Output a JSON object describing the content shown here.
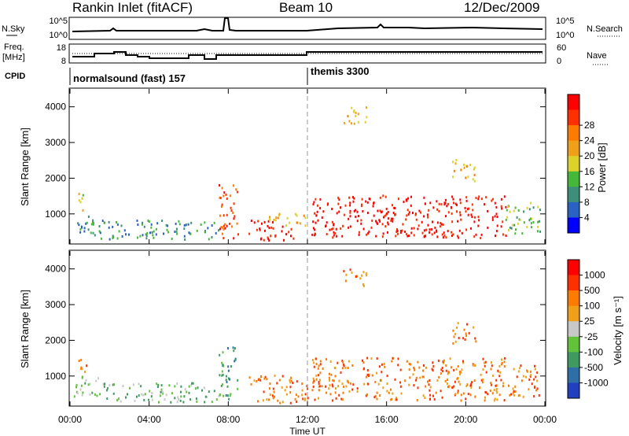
{
  "header": {
    "site": "Rankin Inlet (fitACF)",
    "beam": "Beam 10",
    "date": "12/Dec/2009"
  },
  "noise_panel": {
    "left_label": "N.Sky",
    "right_label": "N.Search",
    "left_ticks": [
      "10^5",
      "10^0"
    ],
    "right_ticks": [
      "10^5",
      "10^0"
    ]
  },
  "freq_panel": {
    "left_label_line1": "Freq.",
    "left_label_line2": "[MHz]",
    "right_label": "Nave",
    "left_ticks": [
      "18",
      "8"
    ],
    "right_ticks": [
      "60",
      "0"
    ]
  },
  "cpid": {
    "label": "CPID",
    "segments": [
      {
        "start_hour": 0,
        "end_hour": 12,
        "text": "normalsound (fast) 157"
      },
      {
        "start_hour": 12,
        "end_hour": 24,
        "text": "themis 3300"
      }
    ]
  },
  "chart_data": [
    {
      "type": "heatmap",
      "name": "power",
      "ylabel": "Slant Range [km]",
      "xlabel": "",
      "ylim": [
        180,
        4500
      ],
      "yticks": [
        "1000",
        "2000",
        "3000",
        "4000"
      ],
      "colorbar": {
        "label": "Power [dB]",
        "ticks": [
          "4",
          "8",
          "12",
          "16",
          "20",
          "24",
          "28"
        ],
        "colors": [
          "#0000ff",
          "#2a62c4",
          "#3d8f7a",
          "#45b83a",
          "#dcd22a",
          "#f0a018",
          "#ff7a00",
          "#ff3000",
          "#ff0000"
        ]
      },
      "regions": [
        {
          "t0": 0.1,
          "t1": 1.5,
          "r0": 380,
          "r1": 1000,
          "level": 2
        },
        {
          "t0": 0.4,
          "t1": 0.9,
          "r0": 1050,
          "r1": 1600,
          "level": 4
        },
        {
          "t0": 1.5,
          "t1": 7.5,
          "r0": 250,
          "r1": 800,
          "level": 2
        },
        {
          "t0": 7.5,
          "t1": 8.5,
          "r0": 300,
          "r1": 1800,
          "level": 7
        },
        {
          "t0": 9.0,
          "t1": 11.3,
          "r0": 230,
          "r1": 800,
          "level": 8
        },
        {
          "t0": 10.0,
          "t1": 12.0,
          "r0": 600,
          "r1": 1000,
          "level": 5
        },
        {
          "t0": 12.2,
          "t1": 22.0,
          "r0": 300,
          "r1": 1500,
          "level": 8
        },
        {
          "t0": 13.8,
          "t1": 15.0,
          "r0": 3500,
          "r1": 4000,
          "level": 5
        },
        {
          "t0": 19.3,
          "t1": 20.5,
          "r0": 1900,
          "r1": 2500,
          "level": 5
        },
        {
          "t0": 22.0,
          "t1": 23.8,
          "r0": 400,
          "r1": 1300,
          "level": 3
        }
      ]
    },
    {
      "type": "heatmap",
      "name": "velocity",
      "ylabel": "Slant Range [km]",
      "xlabel": "Time UT",
      "ylim": [
        180,
        4500
      ],
      "yticks": [
        "1000",
        "2000",
        "3000",
        "4000"
      ],
      "xticks": [
        "00:00",
        "04:00",
        "08:00",
        "12:00",
        "16:00",
        "20:00",
        "00:00"
      ],
      "colorbar": {
        "label": "Velocity [m s⁻¹]",
        "ticks": [
          "1000",
          "500",
          "100",
          "25",
          "-25",
          "-100",
          "-500",
          "-1000"
        ],
        "colors": [
          "#2040c0",
          "#2f6fa8",
          "#3f9a60",
          "#62c23a",
          "#c8c8c8",
          "#f0a018",
          "#ff7a00",
          "#ff3000",
          "#ff0000"
        ]
      },
      "regions": [
        {
          "t0": 0.1,
          "t1": 1.5,
          "r0": 380,
          "r1": 1000,
          "level": 3
        },
        {
          "t0": 0.4,
          "t1": 0.9,
          "r0": 1050,
          "r1": 1600,
          "level": 6
        },
        {
          "t0": 1.5,
          "t1": 7.5,
          "r0": 250,
          "r1": 800,
          "level": 3
        },
        {
          "t0": 7.5,
          "t1": 8.5,
          "r0": 300,
          "r1": 1800,
          "level": 2
        },
        {
          "t0": 9.0,
          "t1": 12.0,
          "r0": 230,
          "r1": 1000,
          "level": 6
        },
        {
          "t0": 12.2,
          "t1": 22.0,
          "r0": 300,
          "r1": 1500,
          "level": 6
        },
        {
          "t0": 13.8,
          "t1": 15.0,
          "r0": 3500,
          "r1": 4000,
          "level": 6
        },
        {
          "t0": 19.3,
          "t1": 20.5,
          "r0": 1900,
          "r1": 2500,
          "level": 6
        },
        {
          "t0": 22.0,
          "t1": 23.8,
          "r0": 400,
          "r1": 1300,
          "level": 6
        }
      ]
    }
  ]
}
